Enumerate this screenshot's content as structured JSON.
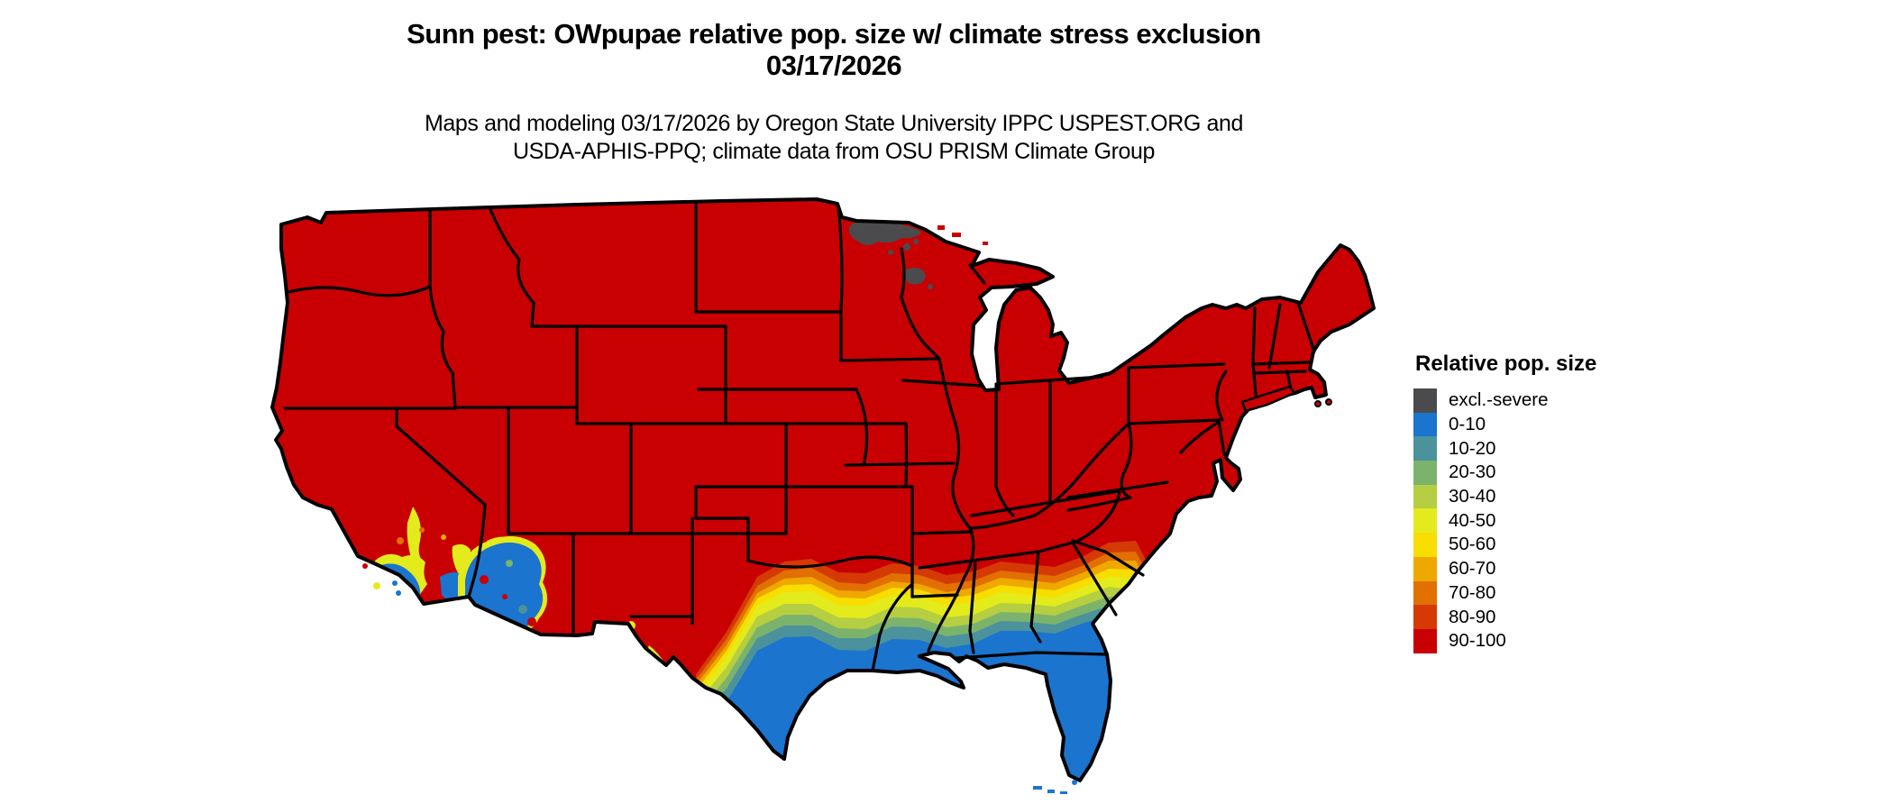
{
  "header": {
    "title_line1": "Sunn pest: OWpupae relative pop. size w/ climate stress exclusion",
    "title_line2": "03/17/2026",
    "subtitle_line1": "Maps and modeling 03/17/2026 by Oregon State University IPPC USPEST.ORG and",
    "subtitle_line2": "USDA-APHIS-PPQ; climate data from OSU PRISM Climate Group"
  },
  "legend": {
    "title": "Relative pop. size",
    "entries": [
      {
        "label": "excl.-severe",
        "color": "#4B4B4D"
      },
      {
        "label": "0-10",
        "color": "#1B74CE"
      },
      {
        "label": "10-20",
        "color": "#4B929D"
      },
      {
        "label": "20-30",
        "color": "#7CB36C"
      },
      {
        "label": "30-40",
        "color": "#B5CE42"
      },
      {
        "label": "40-50",
        "color": "#E3EB1C"
      },
      {
        "label": "50-60",
        "color": "#F8DE00"
      },
      {
        "label": "60-70",
        "color": "#EEA800"
      },
      {
        "label": "70-80",
        "color": "#E17000"
      },
      {
        "label": "80-90",
        "color": "#D53A05"
      },
      {
        "label": "90-100",
        "color": "#C80002"
      }
    ]
  },
  "map": {
    "type": "choropleth raster map of contiguous United States",
    "border_color": "#000000",
    "background_color": "#FFFFFF",
    "base_class": "90-100",
    "regions": [
      {
        "area": "most of the contiguous US",
        "class": "90-100"
      },
      {
        "area": "northeastern Minnesota and small patch of northern Wisconsin",
        "class": "excl.-severe"
      },
      {
        "area": "southern Texas, Gulf Coast, Louisiana delta, all of Florida, coastal southern California, southwestern Arizona",
        "class": "0-10"
      },
      {
        "area": "band across the southern states from central Texas through Georgia and coastal South Carolina",
        "class": "gradient 10-90 from south (low) to north (high)"
      }
    ]
  }
}
